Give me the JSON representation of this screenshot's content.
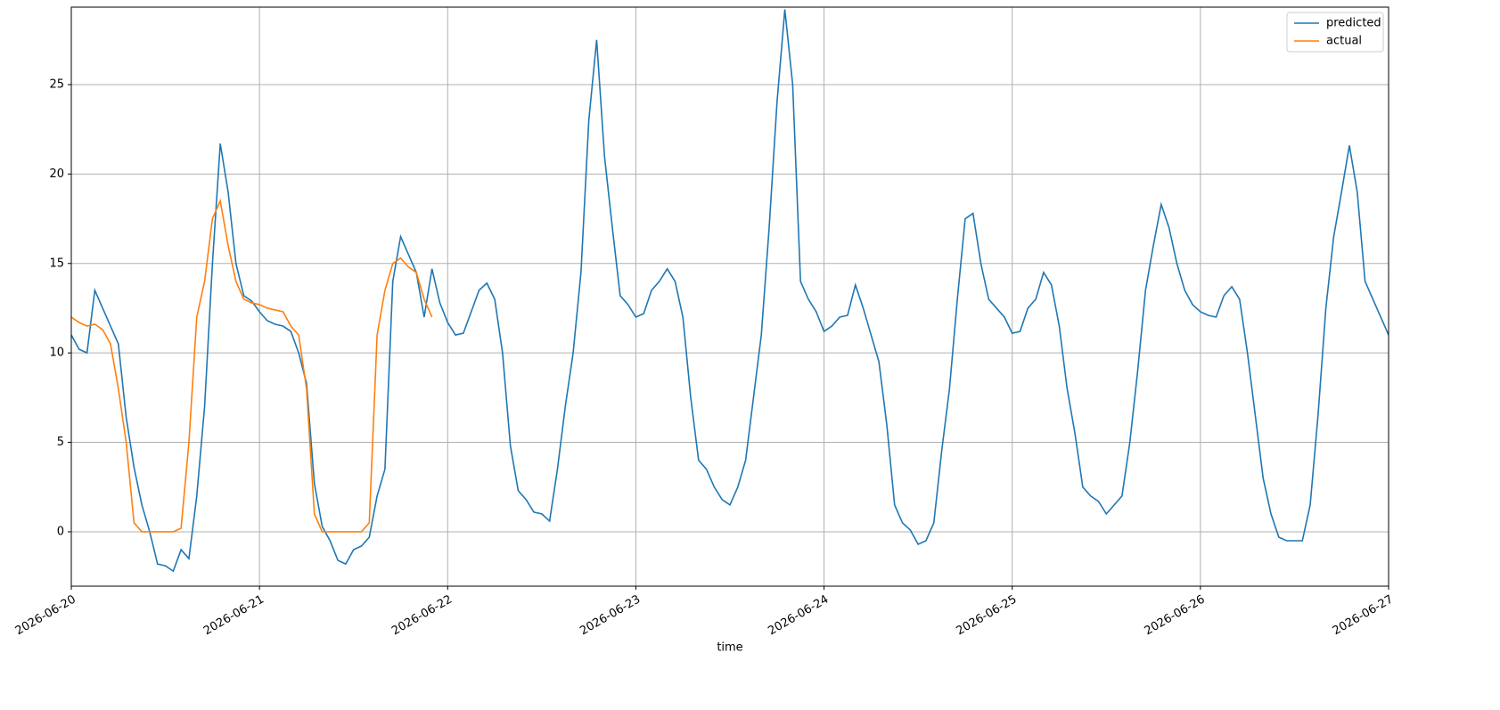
{
  "chart_data": {
    "type": "line",
    "xlabel": "time",
    "x": [
      "2026-06-20 00:00",
      "2026-06-20 01:00",
      "2026-06-20 02:00",
      "2026-06-20 03:00",
      "2026-06-20 04:00",
      "2026-06-20 05:00",
      "2026-06-20 06:00",
      "2026-06-20 07:00",
      "2026-06-20 08:00",
      "2026-06-20 09:00",
      "2026-06-20 10:00",
      "2026-06-20 11:00",
      "2026-06-20 12:00",
      "2026-06-20 13:00",
      "2026-06-20 14:00",
      "2026-06-20 15:00",
      "2026-06-20 16:00",
      "2026-06-20 17:00",
      "2026-06-20 18:00",
      "2026-06-20 19:00",
      "2026-06-20 20:00",
      "2026-06-20 21:00",
      "2026-06-20 22:00",
      "2026-06-20 23:00",
      "2026-06-21 00:00",
      "2026-06-21 01:00",
      "2026-06-21 02:00",
      "2026-06-21 03:00",
      "2026-06-21 04:00",
      "2026-06-21 05:00",
      "2026-06-21 06:00",
      "2026-06-21 07:00",
      "2026-06-21 08:00",
      "2026-06-21 09:00",
      "2026-06-21 10:00",
      "2026-06-21 11:00",
      "2026-06-21 12:00",
      "2026-06-21 13:00",
      "2026-06-21 14:00",
      "2026-06-21 15:00",
      "2026-06-21 16:00",
      "2026-06-21 17:00",
      "2026-06-21 18:00",
      "2026-06-21 19:00",
      "2026-06-21 20:00",
      "2026-06-21 21:00",
      "2026-06-21 22:00",
      "2026-06-21 23:00",
      "2026-06-22 00:00",
      "2026-06-22 01:00",
      "2026-06-22 02:00",
      "2026-06-22 03:00",
      "2026-06-22 04:00",
      "2026-06-22 05:00",
      "2026-06-22 06:00",
      "2026-06-22 07:00",
      "2026-06-22 08:00",
      "2026-06-22 09:00",
      "2026-06-22 10:00",
      "2026-06-22 11:00",
      "2026-06-22 12:00",
      "2026-06-22 13:00",
      "2026-06-22 14:00",
      "2026-06-22 15:00",
      "2026-06-22 16:00",
      "2026-06-22 17:00",
      "2026-06-22 18:00",
      "2026-06-22 19:00",
      "2026-06-22 20:00",
      "2026-06-22 21:00",
      "2026-06-22 22:00",
      "2026-06-22 23:00",
      "2026-06-23 00:00",
      "2026-06-23 01:00",
      "2026-06-23 02:00",
      "2026-06-23 03:00",
      "2026-06-23 04:00",
      "2026-06-23 05:00",
      "2026-06-23 06:00",
      "2026-06-23 07:00",
      "2026-06-23 08:00",
      "2026-06-23 09:00",
      "2026-06-23 10:00",
      "2026-06-23 11:00",
      "2026-06-23 12:00",
      "2026-06-23 13:00",
      "2026-06-23 14:00",
      "2026-06-23 15:00",
      "2026-06-23 16:00",
      "2026-06-23 17:00",
      "2026-06-23 18:00",
      "2026-06-23 19:00",
      "2026-06-23 20:00",
      "2026-06-23 21:00",
      "2026-06-23 22:00",
      "2026-06-23 23:00",
      "2026-06-24 00:00",
      "2026-06-24 01:00",
      "2026-06-24 02:00",
      "2026-06-24 03:00",
      "2026-06-24 04:00",
      "2026-06-24 05:00",
      "2026-06-24 06:00",
      "2026-06-24 07:00",
      "2026-06-24 08:00",
      "2026-06-24 09:00",
      "2026-06-24 10:00",
      "2026-06-24 11:00",
      "2026-06-24 12:00",
      "2026-06-24 13:00",
      "2026-06-24 14:00",
      "2026-06-24 15:00",
      "2026-06-24 16:00",
      "2026-06-24 17:00",
      "2026-06-24 18:00",
      "2026-06-24 19:00",
      "2026-06-24 20:00",
      "2026-06-24 21:00",
      "2026-06-24 22:00",
      "2026-06-24 23:00",
      "2026-06-25 00:00",
      "2026-06-25 01:00",
      "2026-06-25 02:00",
      "2026-06-25 03:00",
      "2026-06-25 04:00",
      "2026-06-25 05:00",
      "2026-06-25 06:00",
      "2026-06-25 07:00",
      "2026-06-25 08:00",
      "2026-06-25 09:00",
      "2026-06-25 10:00",
      "2026-06-25 11:00",
      "2026-06-25 12:00",
      "2026-06-25 13:00",
      "2026-06-25 14:00",
      "2026-06-25 15:00",
      "2026-06-25 16:00",
      "2026-06-25 17:00",
      "2026-06-25 18:00",
      "2026-06-25 19:00",
      "2026-06-25 20:00",
      "2026-06-25 21:00",
      "2026-06-25 22:00",
      "2026-06-25 23:00",
      "2026-06-26 00:00",
      "2026-06-26 01:00",
      "2026-06-26 02:00",
      "2026-06-26 03:00",
      "2026-06-26 04:00",
      "2026-06-26 05:00",
      "2026-06-26 06:00",
      "2026-06-26 07:00",
      "2026-06-26 08:00",
      "2026-06-26 09:00",
      "2026-06-26 10:00",
      "2026-06-26 11:00",
      "2026-06-26 12:00",
      "2026-06-26 13:00",
      "2026-06-26 14:00",
      "2026-06-26 15:00",
      "2026-06-26 16:00",
      "2026-06-26 17:00",
      "2026-06-26 18:00",
      "2026-06-26 19:00",
      "2026-06-26 20:00",
      "2026-06-26 21:00",
      "2026-06-26 22:00",
      "2026-06-26 23:00",
      "2026-06-27 00:00"
    ],
    "series": [
      {
        "name": "predicted",
        "color": "#1f77b4",
        "values": [
          11,
          10.2,
          10,
          13.5,
          12.5,
          11.5,
          10.5,
          6.4,
          3.6,
          1.5,
          0,
          -1.8,
          -1.9,
          -2.2,
          -1,
          -1.5,
          2,
          7,
          15,
          21.7,
          19,
          15,
          13.2,
          12.9,
          12.3,
          11.8,
          11.6,
          11.5,
          11.2,
          10,
          8.3,
          2.7,
          0.3,
          -0.5,
          -1.6,
          -1.8,
          -1,
          -0.8,
          -0.3,
          2,
          3.5,
          14,
          16.5,
          15.5,
          14.5,
          12,
          14.7,
          12.8,
          11.7,
          11,
          11.1,
          12.3,
          13.5,
          13.9,
          13,
          10,
          4.8,
          2.3,
          1.8,
          1.1,
          1,
          0.6,
          3.5,
          7,
          10,
          14.5,
          23,
          27.5,
          21,
          17,
          13.2,
          12.7,
          12,
          12.2,
          13.5,
          14,
          14.7,
          14,
          12,
          7.5,
          4,
          3.5,
          2.5,
          1.8,
          1.5,
          2.5,
          4,
          7.5,
          11,
          17,
          24,
          29.2,
          25,
          14,
          13,
          12.3,
          11.2,
          11.5,
          12,
          12.1,
          13.8,
          12.5,
          11,
          9.5,
          6,
          1.5,
          0.5,
          0.1,
          -0.7,
          -0.5,
          0.5,
          4.5,
          8,
          13,
          17.5,
          17.8,
          15,
          13,
          12.5,
          12,
          11.1,
          11.2,
          12.5,
          13,
          14.5,
          13.8,
          11.5,
          8,
          5.5,
          2.5,
          2,
          1.7,
          1,
          1.5,
          2,
          5,
          9,
          13.5,
          16,
          18.3,
          17,
          15,
          13.5,
          12.7,
          12.3,
          12.1,
          12,
          13.2,
          13.7,
          13,
          10,
          6.5,
          3,
          1,
          -0.3,
          -0.5,
          -0.5,
          -0.5,
          1.5,
          6.5,
          12.5,
          16.5,
          19,
          21.6,
          19,
          14,
          13,
          12,
          11
        ]
      },
      {
        "name": "actual",
        "color": "#ff7f0e",
        "values": [
          12,
          11.7,
          11.5,
          11.6,
          11.3,
          10.5,
          8,
          5,
          0.5,
          0,
          0,
          0,
          0,
          0,
          0.2,
          5,
          12,
          14,
          17.5,
          18.5,
          16,
          14,
          13,
          12.8,
          12.7,
          12.5,
          12.4,
          12.3,
          11.5,
          11,
          8,
          1,
          0,
          0,
          0,
          0,
          0,
          0,
          0.5,
          11,
          13.5,
          15,
          15.3,
          14.8,
          14.5,
          13,
          12,
          null,
          null,
          null,
          null,
          null,
          null,
          null,
          null,
          null,
          null,
          null,
          null,
          null,
          null,
          null,
          null,
          null,
          null,
          null,
          null,
          null,
          null,
          null,
          null,
          null,
          null,
          null,
          null,
          null,
          null,
          null,
          null,
          null,
          null,
          null,
          null,
          null,
          null,
          null,
          null,
          null,
          null,
          null,
          null,
          null,
          null,
          null,
          null,
          null,
          null,
          null,
          null,
          null,
          null,
          null,
          null,
          null,
          null,
          null,
          null,
          null,
          null,
          null,
          null,
          null,
          null,
          null,
          null,
          null,
          null,
          null,
          null,
          null,
          null,
          null,
          null,
          null,
          null,
          null,
          null,
          null,
          null,
          null,
          null,
          null,
          null,
          null,
          null,
          null,
          null,
          null,
          null,
          null,
          null,
          null,
          null,
          null,
          null,
          null,
          null,
          null,
          null,
          null,
          null,
          null,
          null,
          null,
          null,
          null,
          null,
          null,
          null,
          null,
          null,
          null,
          null,
          null,
          null,
          null,
          null,
          null,
          null
        ]
      }
    ],
    "xlim": [
      "2026-06-20",
      "2026-06-27"
    ],
    "xticks": [
      "2026-06-20",
      "2026-06-21",
      "2026-06-22",
      "2026-06-23",
      "2026-06-24",
      "2026-06-25",
      "2026-06-26",
      "2026-06-27"
    ],
    "ylim": [
      -3.04,
      29.33
    ],
    "yticks": [
      0,
      5,
      10,
      15,
      20,
      25
    ],
    "grid": true,
    "legend": "upper right"
  }
}
